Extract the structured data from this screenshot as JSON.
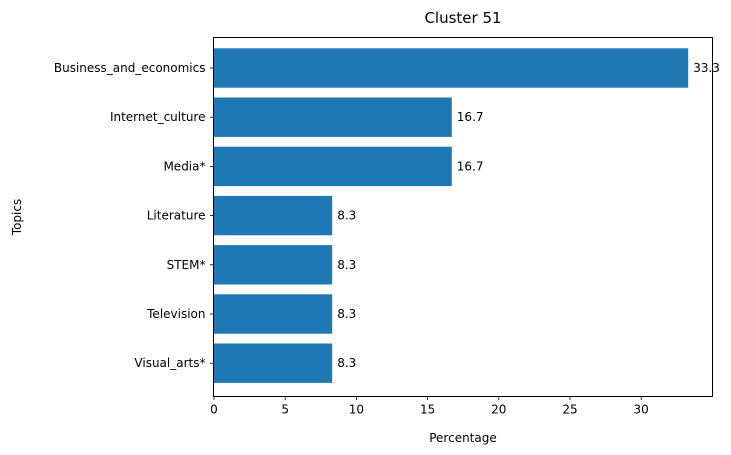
{
  "chart_data": {
    "type": "bar",
    "orientation": "horizontal",
    "title": "Cluster 51",
    "xlabel": "Percentage",
    "ylabel": "Topics",
    "categories": [
      "Business_and_economics",
      "Internet_culture",
      "Media*",
      "Literature",
      "STEM*",
      "Television",
      "Visual_arts*"
    ],
    "values": [
      33.3,
      16.7,
      16.7,
      8.3,
      8.3,
      8.3,
      8.3
    ],
    "data_labels": [
      "33.3",
      "16.7",
      "16.7",
      "8.3",
      "8.3",
      "8.3",
      "8.3"
    ],
    "xlim": [
      0,
      35
    ],
    "xticks": [
      0,
      5,
      10,
      15,
      20,
      25,
      30
    ],
    "grid": false,
    "bar_color": "#1f77b4"
  }
}
